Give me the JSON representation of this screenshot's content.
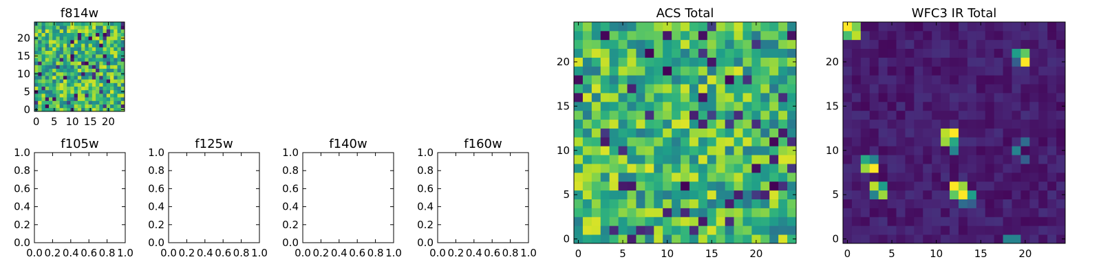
{
  "figure": {
    "panels": [
      {
        "id": "f814w",
        "title": "f814w",
        "kind": "heatmap",
        "xticks": [
          0,
          5,
          10,
          15,
          20
        ],
        "yticks": [
          0,
          5,
          10,
          15,
          20
        ],
        "nx": 25,
        "ny": 25,
        "seed": 814,
        "pattern": "noise"
      },
      {
        "id": "f105w",
        "title": "f105w",
        "kind": "empty",
        "xticks": [
          "0.0",
          "0.2",
          "0.4",
          "0.6",
          "0.8",
          "1.0"
        ],
        "yticks": [
          "0.0",
          "0.2",
          "0.4",
          "0.6",
          "0.8",
          "1.0"
        ]
      },
      {
        "id": "f125w",
        "title": "f125w",
        "kind": "empty",
        "xticks": [
          "0.0",
          "0.2",
          "0.4",
          "0.6",
          "0.8",
          "1.0"
        ],
        "yticks": [
          "0.0",
          "0.2",
          "0.4",
          "0.6",
          "0.8",
          "1.0"
        ]
      },
      {
        "id": "f140w",
        "title": "f140w",
        "kind": "empty",
        "xticks": [
          "0.0",
          "0.2",
          "0.4",
          "0.6",
          "0.8",
          "1.0"
        ],
        "yticks": [
          "0.0",
          "0.2",
          "0.4",
          "0.6",
          "0.8",
          "1.0"
        ]
      },
      {
        "id": "f160w",
        "title": "f160w",
        "kind": "empty",
        "xticks": [
          "0.0",
          "0.2",
          "0.4",
          "0.6",
          "0.8",
          "1.0"
        ],
        "yticks": [
          "0.0",
          "0.2",
          "0.4",
          "0.6",
          "0.8",
          "1.0"
        ]
      },
      {
        "id": "acs_total",
        "title": "ACS Total",
        "kind": "heatmap",
        "xticks": [
          0,
          5,
          10,
          15,
          20
        ],
        "yticks": [
          0,
          5,
          10,
          15,
          20
        ],
        "nx": 25,
        "ny": 25,
        "seed": 1234,
        "pattern": "noise"
      },
      {
        "id": "wfc3_total",
        "title": "WFC3 IR Total",
        "kind": "heatmap",
        "xticks": [
          0,
          5,
          10,
          15,
          20
        ],
        "yticks": [
          0,
          5,
          10,
          15,
          20
        ],
        "nx": 25,
        "ny": 25,
        "seed": 777,
        "pattern": "sparse",
        "hotspots": [
          [
            0,
            24,
            1.0
          ],
          [
            1,
            24,
            0.8
          ],
          [
            0,
            23,
            0.7
          ],
          [
            1,
            23,
            0.9
          ],
          [
            19,
            21,
            0.55
          ],
          [
            20,
            21,
            0.75
          ],
          [
            20,
            20,
            1.0
          ],
          [
            19,
            20,
            0.3
          ],
          [
            11,
            12,
            0.9
          ],
          [
            12,
            12,
            1.0
          ],
          [
            11,
            11,
            0.85
          ],
          [
            12,
            11,
            0.6
          ],
          [
            12,
            10,
            0.45
          ],
          [
            2,
            9,
            0.6
          ],
          [
            3,
            9,
            0.45
          ],
          [
            2,
            8,
            0.85
          ],
          [
            3,
            8,
            1.0
          ],
          [
            3,
            6,
            0.9
          ],
          [
            4,
            6,
            0.55
          ],
          [
            3,
            5,
            0.45
          ],
          [
            4,
            5,
            0.85
          ],
          [
            12,
            6,
            1.0
          ],
          [
            13,
            6,
            0.85
          ],
          [
            12,
            5,
            0.75
          ],
          [
            13,
            5,
            1.0
          ],
          [
            14,
            5,
            0.55
          ],
          [
            13,
            4,
            0.35
          ],
          [
            14,
            4,
            0.3
          ],
          [
            19,
            10,
            0.45
          ],
          [
            20,
            9,
            0.3
          ],
          [
            20,
            11,
            0.35
          ],
          [
            18,
            0,
            0.45
          ],
          [
            19,
            0,
            0.45
          ]
        ]
      }
    ]
  },
  "chart_data": [
    {
      "type": "heatmap",
      "title": "f814w",
      "xlim": [
        0,
        24
      ],
      "ylim": [
        0,
        24
      ],
      "colormap": "viridis"
    },
    {
      "type": "scatter",
      "title": "f105w",
      "xlim": [
        0.0,
        1.0
      ],
      "ylim": [
        0.0,
        1.0
      ],
      "values": []
    },
    {
      "type": "scatter",
      "title": "f125w",
      "xlim": [
        0.0,
        1.0
      ],
      "ylim": [
        0.0,
        1.0
      ],
      "values": []
    },
    {
      "type": "scatter",
      "title": "f140w",
      "xlim": [
        0.0,
        1.0
      ],
      "ylim": [
        0.0,
        1.0
      ],
      "values": []
    },
    {
      "type": "scatter",
      "title": "f160w",
      "xlim": [
        0.0,
        1.0
      ],
      "ylim": [
        0.0,
        1.0
      ],
      "values": []
    },
    {
      "type": "heatmap",
      "title": "ACS Total",
      "xlim": [
        0,
        24
      ],
      "ylim": [
        0,
        24
      ],
      "colormap": "viridis"
    },
    {
      "type": "heatmap",
      "title": "WFC3 IR Total",
      "xlim": [
        0,
        24
      ],
      "ylim": [
        0,
        24
      ],
      "colormap": "viridis"
    }
  ]
}
